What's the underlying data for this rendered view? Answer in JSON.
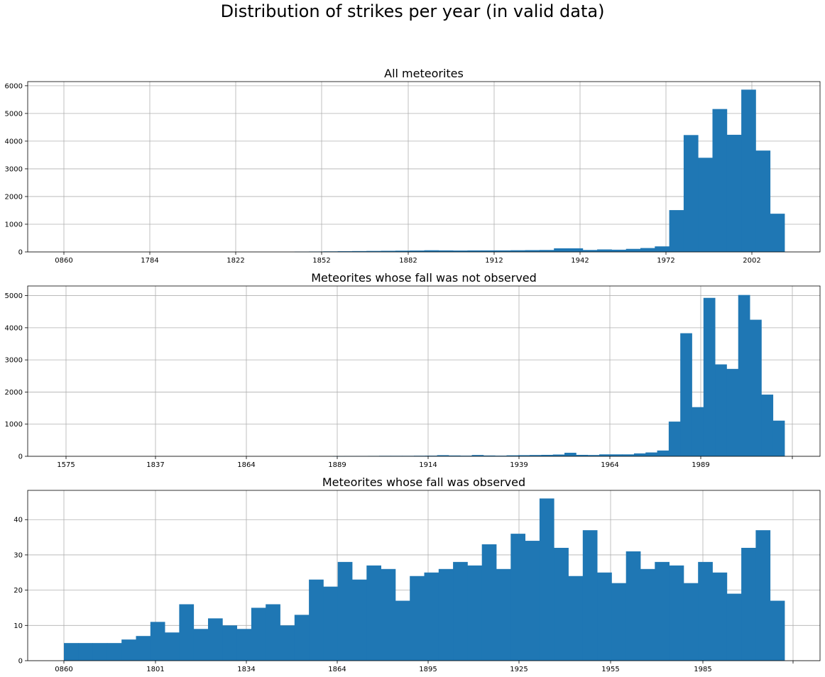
{
  "figure": {
    "suptitle": "Distribution of strikes per year (in valid data)"
  },
  "colors": {
    "bar": "#1f77b4",
    "grid": "#b0b0b0",
    "spine": "#000000"
  },
  "chart_data": [
    {
      "type": "bar",
      "title": "All meteorites",
      "grid": true,
      "ylim": [
        0,
        6150
      ],
      "yticks": [
        0,
        1000,
        2000,
        3000,
        4000,
        5000,
        6000
      ],
      "xtick_labels": [
        "0860",
        "1784",
        "1822",
        "1852",
        "1882",
        "1912",
        "1942",
        "1972",
        "2002"
      ],
      "values": [
        0,
        0,
        0,
        0,
        0,
        0,
        0,
        0,
        0,
        0,
        0,
        0,
        0,
        0,
        0,
        0,
        10,
        15,
        20,
        25,
        30,
        35,
        40,
        45,
        50,
        60,
        55,
        50,
        55,
        55,
        55,
        60,
        65,
        70,
        130,
        130,
        70,
        90,
        80,
        110,
        140,
        200,
        1510,
        4220,
        3400,
        5160,
        4230,
        5860,
        3660,
        1380
      ]
    },
    {
      "type": "bar",
      "title": "Meteorites whose fall was not observed",
      "grid": true,
      "ylim": [
        0,
        5300
      ],
      "yticks": [
        0,
        1000,
        2000,
        3000,
        4000,
        5000
      ],
      "xtick_labels": [
        "1575",
        "1837",
        "1864",
        "1889",
        "1914",
        "1939",
        "1964",
        "1989",
        ""
      ],
      "values": [
        0,
        0,
        0,
        0,
        0,
        0,
        0,
        0,
        0,
        0,
        0,
        0,
        5,
        8,
        10,
        12,
        15,
        15,
        15,
        18,
        20,
        35,
        25,
        20,
        40,
        25,
        20,
        30,
        35,
        40,
        45,
        55,
        110,
        45,
        40,
        60,
        60,
        60,
        90,
        120,
        180,
        1080,
        3830,
        1530,
        4930,
        2860,
        2720,
        5020,
        4250,
        1920,
        1110
      ]
    },
    {
      "type": "bar",
      "title": "Meteorites whose fall was observed",
      "grid": true,
      "ylim": [
        0,
        48.3
      ],
      "yticks": [
        0,
        10,
        20,
        30,
        40
      ],
      "xtick_labels": [
        "0860",
        "1801",
        "1834",
        "1864",
        "1895",
        "1925",
        "1955",
        "1985",
        ""
      ],
      "values": [
        5,
        5,
        5,
        5,
        6,
        7,
        11,
        8,
        16,
        9,
        12,
        10,
        9,
        15,
        16,
        10,
        13,
        23,
        21,
        28,
        23,
        27,
        26,
        17,
        24,
        25,
        26,
        28,
        27,
        33,
        26,
        36,
        34,
        46,
        32,
        24,
        37,
        25,
        22,
        31,
        26,
        28,
        27,
        22,
        28,
        25,
        19,
        32,
        37,
        17
      ]
    }
  ]
}
